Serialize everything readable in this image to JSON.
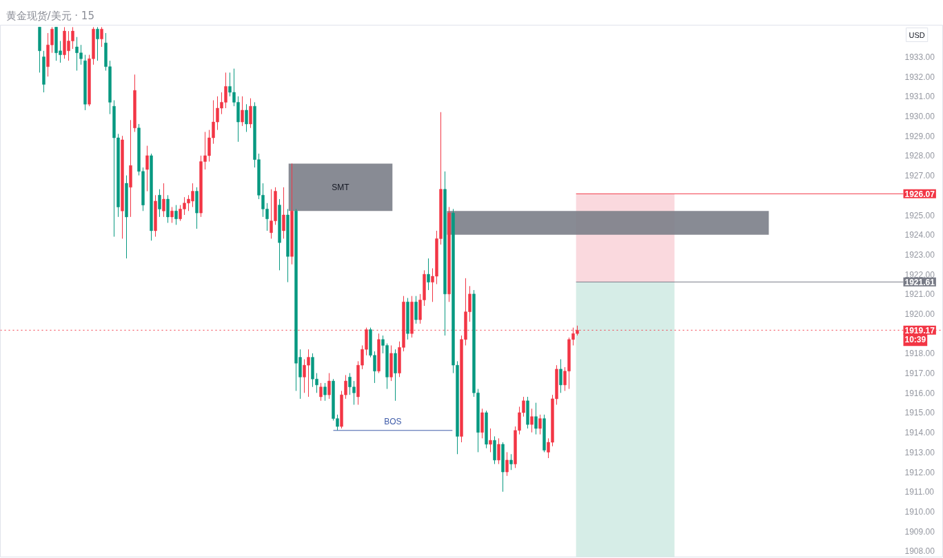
{
  "chart_data": {
    "type": "candlestick",
    "title": "黄金现货/美元 · 15",
    "ylabel": "USD",
    "tick_labels": "y",
    "categories": [
      null,
      null,
      null,
      null,
      null,
      null,
      null,
      null,
      null,
      null,
      null,
      null,
      null,
      null,
      null,
      null,
      null,
      null,
      null,
      null,
      null,
      null,
      null,
      null,
      null,
      null,
      null,
      null,
      null,
      null,
      null,
      null,
      null,
      null,
      null,
      null,
      null,
      null,
      null,
      null,
      null,
      null,
      null,
      null,
      null,
      null,
      null,
      null,
      null,
      null,
      null,
      null,
      null,
      null,
      null,
      null,
      null,
      null,
      null,
      null,
      null,
      null,
      null,
      null,
      null,
      null,
      null,
      null,
      null,
      null,
      null,
      null,
      null,
      null,
      null,
      null,
      null,
      null,
      null,
      null,
      null,
      null,
      null,
      null,
      null,
      null,
      null,
      null,
      null,
      null,
      null,
      null,
      null,
      null,
      null,
      null,
      null,
      null,
      null,
      null,
      null,
      null,
      null,
      null,
      null,
      null,
      null,
      null,
      null,
      null,
      null,
      null,
      null,
      null,
      null,
      null,
      null,
      null,
      null,
      null,
      null,
      null,
      null,
      null,
      null,
      null,
      null,
      null,
      null,
      null,
      null,
      null,
      null,
      null,
      null,
      null,
      null,
      null,
      null,
      null,
      null,
      null,
      null,
      null,
      null,
      null,
      null,
      null,
      null,
      null,
      null,
      null,
      null,
      null,
      null,
      null,
      null,
      null,
      null,
      null,
      null,
      null,
      null,
      null,
      null,
      null,
      null,
      null,
      null,
      null,
      null,
      null,
      null,
      null,
      null,
      null,
      null,
      null,
      null,
      null,
      null,
      null,
      null,
      null,
      null,
      null,
      null,
      null,
      null,
      null,
      null,
      null,
      null,
      null,
      null,
      null,
      null,
      null,
      null,
      null,
      null,
      null,
      null,
      null,
      null,
      null,
      null,
      null,
      null,
      null,
      null,
      null,
      null,
      null,
      null,
      null,
      null,
      null,
      null,
      null,
      null,
      null,
      null,
      null,
      null,
      null,
      null,
      null
    ],
    "ohlc": [
      null,
      null,
      null,
      null,
      null,
      null,
      null,
      null,
      null,
      [
        1934.5,
        1934.5,
        1932.2,
        1933.3
      ],
      [
        1933.0,
        1933.3,
        1931.2,
        1931.6
      ],
      [
        1932.5,
        1934.2,
        1932.0,
        1933.6
      ],
      [
        1933.6,
        1934.5,
        1933.2,
        1934.4
      ],
      [
        1934.5,
        1934.5,
        1932.8,
        1933.2
      ],
      [
        1933.3,
        1933.8,
        1932.7,
        1933.1
      ],
      [
        1933.1,
        1934.5,
        1932.9,
        1934.3
      ],
      [
        1933.3,
        1934.3,
        1932.8,
        1933.8
      ],
      [
        1933.8,
        1934.5,
        1933.4,
        1934.3
      ],
      [
        1933.5,
        1934.0,
        1932.3,
        1933.2
      ],
      [
        1933.2,
        1933.6,
        1932.6,
        1932.9
      ],
      [
        1932.8,
        1933.1,
        1930.3,
        1930.6
      ],
      [
        1930.6,
        1933.1,
        1930.5,
        1932.9
      ],
      [
        1932.9,
        1934.5,
        1932.6,
        1934.4
      ],
      [
        1934.4,
        1934.5,
        1932.8,
        1933.9
      ],
      [
        1933.9,
        1934.5,
        1933.5,
        1934.4
      ],
      [
        1933.7,
        1934.2,
        1932.3,
        1932.5
      ],
      [
        1932.5,
        1932.8,
        1930.1,
        1930.7
      ],
      [
        1930.5,
        1930.8,
        1923.9,
        1928.9
      ],
      [
        1928.9,
        1929.1,
        1924.9,
        1925.4
      ],
      [
        1925.2,
        1929.0,
        1923.8,
        1928.8
      ],
      [
        1926.6,
        1927.0,
        1922.8,
        1924.9
      ],
      [
        1926.4,
        1929.8,
        1924.9,
        1927.5
      ],
      [
        1929.4,
        1932.1,
        1929.2,
        1931.3
      ],
      [
        1929.4,
        1929.6,
        1927.0,
        1927.2
      ],
      [
        1927.2,
        1927.4,
        1925.2,
        1925.5
      ],
      [
        1927.3,
        1928.5,
        1926.2,
        1928.0
      ],
      [
        1928.0,
        1928.1,
        1923.7,
        1924.2
      ],
      [
        1924.2,
        1926.0,
        1923.9,
        1925.7
      ],
      [
        1926.0,
        1926.3,
        1924.9,
        1925.3
      ],
      [
        1925.2,
        1926.6,
        1924.9,
        1925.8
      ],
      [
        1925.8,
        1926.0,
        1924.6,
        1924.9
      ],
      [
        1924.9,
        1925.4,
        1924.6,
        1925.2
      ],
      [
        1925.2,
        1925.5,
        1924.5,
        1924.8
      ],
      [
        1924.8,
        1925.5,
        1924.7,
        1925.3
      ],
      [
        1925.3,
        1925.9,
        1925.0,
        1925.6
      ],
      [
        1925.6,
        1926.0,
        1925.2,
        1925.8
      ],
      [
        1925.7,
        1926.6,
        1925.4,
        1926.2
      ],
      [
        1926.2,
        1926.4,
        1924.3,
        1925.1
      ],
      [
        1925.1,
        1928.0,
        1924.9,
        1927.7
      ],
      [
        1927.7,
        1929.2,
        1927.3,
        1928.0
      ],
      [
        1928.0,
        1929.3,
        1927.7,
        1928.9
      ],
      [
        1928.9,
        1930.8,
        1928.6,
        1929.7
      ],
      [
        1929.7,
        1931.0,
        1929.3,
        1930.4
      ],
      [
        1930.4,
        1931.2,
        1930.1,
        1930.7
      ],
      [
        1930.7,
        1932.2,
        1930.4,
        1931.5
      ],
      [
        1931.5,
        1932.2,
        1931.0,
        1931.2
      ],
      [
        1931.2,
        1932.4,
        1930.5,
        1930.7
      ],
      [
        1930.7,
        1931.0,
        1928.7,
        1929.7
      ],
      [
        1929.7,
        1931.0,
        1929.5,
        1930.3
      ],
      [
        1930.3,
        1930.6,
        1929.2,
        1929.6
      ],
      [
        1929.6,
        1930.9,
        1929.4,
        1930.5
      ],
      [
        1930.5,
        1930.7,
        1927.4,
        1927.8
      ],
      [
        1927.8,
        1928.1,
        1925.8,
        1926.0
      ],
      [
        1926.0,
        1926.6,
        1924.9,
        1925.3
      ],
      [
        1925.3,
        1925.6,
        1924.2,
        1924.8
      ],
      [
        1924.1,
        1926.3,
        1923.8,
        1924.7
      ],
      [
        1924.7,
        1926.4,
        1924.5,
        1926.2
      ],
      [
        1925.5,
        1925.8,
        1922.2,
        1923.6
      ],
      [
        1924.2,
        1926.4,
        1923.8,
        1925.0
      ],
      [
        1925.0,
        1925.3,
        1921.6,
        1922.9
      ],
      [
        1922.9,
        1927.6,
        1922.5,
        1925.2
      ],
      [
        1925.2,
        1925.3,
        1916.1,
        1917.5
      ],
      [
        1917.8,
        1918.2,
        1915.7,
        1916.8
      ],
      [
        1916.8,
        1917.7,
        1916.0,
        1917.4
      ],
      [
        1917.4,
        1918.2,
        1915.8,
        1917.8
      ],
      [
        1917.8,
        1918.0,
        1916.3,
        1916.7
      ],
      [
        1916.7,
        1917.0,
        1916.0,
        1916.4
      ],
      [
        1915.8,
        1916.5,
        1915.6,
        1916.3
      ],
      [
        1916.3,
        1916.5,
        1915.6,
        1915.9
      ],
      [
        1915.9,
        1917.0,
        1915.7,
        1916.6
      ],
      [
        1916.6,
        1916.7,
        1914.6,
        1914.7
      ],
      [
        1914.7,
        1914.9,
        1914.1,
        1914.3
      ],
      [
        1914.3,
        1916.1,
        1914.2,
        1915.9
      ],
      [
        1915.9,
        1916.9,
        1915.7,
        1916.6
      ],
      [
        1916.8,
        1917.0,
        1915.9,
        1916.3
      ],
      [
        1916.3,
        1916.6,
        1915.4,
        1916.0
      ],
      [
        1915.8,
        1917.6,
        1915.4,
        1917.4
      ],
      [
        1917.4,
        1918.4,
        1917.2,
        1918.2
      ],
      [
        1918.2,
        1919.3,
        1917.9,
        1919.2
      ],
      [
        1919.2,
        1919.3,
        1917.8,
        1917.9
      ],
      [
        1917.9,
        1918.1,
        1916.5,
        1917.1
      ],
      [
        1917.1,
        1919.0,
        1917.0,
        1918.7
      ],
      [
        1918.7,
        1918.9,
        1918.0,
        1918.4
      ],
      [
        1918.4,
        1918.5,
        1916.2,
        1916.8
      ],
      [
        1916.8,
        1918.4,
        1916.6,
        1918.0
      ],
      [
        1918.0,
        1918.2,
        1915.6,
        1917.0
      ],
      [
        1917.0,
        1918.6,
        1916.8,
        1918.3
      ],
      [
        1918.3,
        1920.9,
        1918.1,
        1920.6
      ],
      [
        1920.6,
        1920.8,
        1918.7,
        1919.0
      ],
      [
        1919.0,
        1920.9,
        1918.8,
        1920.6
      ],
      [
        1920.6,
        1920.9,
        1919.5,
        1919.7
      ],
      [
        1919.7,
        1921.0,
        1919.5,
        1920.7
      ],
      [
        1920.7,
        1922.2,
        1920.4,
        1922.0
      ],
      [
        1922.0,
        1922.8,
        1921.2,
        1921.6
      ],
      [
        1921.6,
        1922.3,
        1920.6,
        1921.9
      ],
      [
        1921.9,
        1924.2,
        1921.5,
        1923.8
      ],
      [
        1923.8,
        1930.2,
        1923.5,
        1926.3
      ],
      [
        1926.3,
        1927.2,
        1918.9,
        1921.0
      ],
      [
        1921.0,
        1925.4,
        1920.6,
        1925.1
      ],
      [
        1925.1,
        1925.3,
        1917.0,
        1917.4
      ],
      [
        1917.4,
        1917.6,
        1912.9,
        1913.8
      ],
      [
        1913.8,
        1918.9,
        1913.5,
        1918.7
      ],
      [
        1918.7,
        1921.8,
        1918.4,
        1920.1
      ],
      [
        1920.1,
        1921.4,
        1919.6,
        1921.0
      ],
      [
        1921.0,
        1921.2,
        1915.8,
        1916.0
      ],
      [
        1916.0,
        1916.2,
        1913.0,
        1914.0
      ],
      [
        1914.0,
        1915.2,
        1913.7,
        1915.0
      ],
      [
        1915.0,
        1915.1,
        1913.2,
        1913.4
      ],
      [
        1913.4,
        1914.2,
        1913.0,
        1913.6
      ],
      [
        1913.6,
        1913.8,
        1912.4,
        1912.6
      ],
      [
        1912.6,
        1913.7,
        1912.4,
        1913.4
      ],
      [
        1913.4,
        1913.5,
        1911.0,
        1912.0
      ],
      [
        1912.0,
        1913.0,
        1911.8,
        1912.6
      ],
      [
        1912.6,
        1912.9,
        1912.1,
        1912.4
      ],
      [
        1912.4,
        1914.3,
        1912.2,
        1914.1
      ],
      [
        1914.1,
        1915.3,
        1913.9,
        1915.0
      ],
      [
        1915.0,
        1915.8,
        1914.8,
        1915.6
      ],
      [
        1915.6,
        1915.8,
        1914.2,
        1914.4
      ],
      [
        1914.4,
        1915.2,
        1914.0,
        1914.8
      ],
      [
        1914.8,
        1915.5,
        1913.9,
        1914.2
      ],
      [
        1914.2,
        1914.9,
        1913.9,
        1914.7
      ],
      [
        1914.7,
        1914.9,
        1913.0,
        1913.1
      ],
      [
        1913.0,
        1913.7,
        1912.7,
        1913.5
      ],
      [
        1913.5,
        1915.9,
        1913.3,
        1915.7
      ],
      [
        1915.7,
        1917.4,
        1915.4,
        1917.2
      ],
      [
        1917.2,
        1917.7,
        1916.0,
        1916.4
      ],
      [
        1916.4,
        1917.3,
        1916.1,
        1917.1
      ],
      [
        1917.1,
        1918.8,
        1916.2,
        1918.7
      ],
      [
        1918.7,
        1919.3,
        1918.4,
        1919.0
      ],
      [
        1919.0,
        1919.4,
        1918.9,
        1919.17
      ],
      null,
      null,
      null,
      null,
      null,
      null,
      null,
      null,
      null,
      null,
      null,
      null,
      null,
      null,
      null,
      null,
      null,
      null,
      null,
      null,
      null,
      null,
      null,
      null,
      null,
      null,
      null,
      null,
      null,
      null,
      null,
      null,
      null,
      null,
      null,
      null,
      null,
      null,
      null,
      null,
      null,
      null,
      null,
      null,
      null,
      null,
      null,
      null,
      null,
      null,
      null,
      null,
      null,
      null,
      null,
      null,
      null,
      null,
      null,
      null,
      null,
      null,
      null,
      null,
      null,
      null,
      null,
      null,
      null,
      null,
      null,
      null,
      null,
      null,
      null,
      null,
      null,
      null,
      null,
      null,
      null,
      null,
      null,
      null,
      null,
      null,
      null,
      null
    ],
    "colors": [
      null,
      null,
      null,
      null,
      null,
      null,
      null,
      null,
      null,
      "#089981",
      "#089981",
      "#f23645",
      "#f23645",
      "#089981",
      "#089981",
      "#f23645",
      "#f23645",
      "#f23645",
      "#089981",
      "#089981",
      "#089981",
      "#f23645",
      "#f23645",
      "#089981",
      "#f23645",
      "#089981",
      "#089981",
      "#089981",
      "#089981",
      "#f23645",
      "#089981",
      "#f23645",
      "#f23645",
      "#089981",
      "#089981",
      "#f23645",
      "#089981",
      "#f23645",
      "#089981",
      "#f23645",
      "#089981",
      "#f23645",
      "#089981",
      "#f23645",
      "#f23645",
      "#f23645",
      "#f23645",
      "#089981",
      "#f23645",
      "#f23645",
      "#f23645",
      "#f23645",
      "#f23645",
      "#f23645",
      "#f23645",
      "#089981",
      "#089981",
      "#089981",
      "#f23645",
      "#089981",
      "#f23645",
      "#089981",
      "#089981",
      "#089981",
      "#089981",
      "#f23645",
      "#f23645",
      "#089981",
      "#f23645",
      "#089981",
      "#f23645",
      "#089981",
      "#089981",
      "#f23645",
      "#f23645",
      "#089981",
      "#089981",
      "#f23645",
      "#089981",
      "#f23645",
      "#089981",
      "#089981",
      "#f23645",
      "#f23645",
      "#089981",
      "#089981",
      "#f23645",
      "#f23645",
      "#f23645",
      "#089981",
      "#089981",
      "#f23645",
      "#089981",
      "#089981",
      "#f23645",
      "#089981",
      "#f23645",
      "#f23645",
      "#089981",
      "#f23645",
      "#089981",
      "#f23645",
      "#f23645",
      "#089981",
      "#f23645",
      "#f23645",
      "#f23645",
      "#089981",
      "#f23645",
      "#089981",
      "#089981",
      "#f23645",
      "#f23645",
      "#f23645",
      "#089981",
      "#089981",
      "#f23645",
      "#089981",
      "#f23645",
      "#089981",
      "#f23645",
      "#089981",
      "#f23645",
      "#089981",
      "#f23645",
      "#f23645",
      "#f23645",
      "#089981",
      "#f23645",
      "#089981",
      "#f23645",
      "#089981",
      "#f23645",
      "#f23645",
      "#f23645",
      "#089981",
      "#f23645",
      "#f23645",
      "#f23645",
      "#f23645",
      null,
      null,
      null,
      null,
      null,
      null,
      null,
      null,
      null,
      null,
      null,
      null,
      null,
      null,
      null,
      null,
      null,
      null,
      null,
      null,
      null,
      null,
      null,
      null,
      null,
      null,
      null,
      null,
      null,
      null,
      null,
      null,
      null,
      null,
      null,
      null,
      null,
      null,
      null,
      null,
      null,
      null,
      null,
      null,
      null,
      null,
      null,
      null,
      null,
      null,
      null,
      null,
      null,
      null,
      null,
      null,
      null,
      null,
      null,
      null,
      null,
      null,
      null,
      null,
      null,
      null,
      null,
      null,
      null,
      null,
      null,
      null,
      null,
      null,
      null,
      null,
      null,
      null,
      null,
      null,
      null,
      null,
      null,
      null,
      null,
      null,
      null,
      null
    ],
    "ylim": [
      1907.7,
      1934.6
    ],
    "yticks": [
      {
        "value": 1908,
        "label": "1908.00"
      },
      {
        "value": 1909,
        "label": "1909.00"
      },
      {
        "value": 1910,
        "label": "1910.00"
      },
      {
        "value": 1911,
        "label": "1911.00"
      },
      {
        "value": 1912,
        "label": "1912.00"
      },
      {
        "value": 1913,
        "label": "1913.00"
      },
      {
        "value": 1914,
        "label": "1914.00"
      },
      {
        "value": 1915,
        "label": "1915.00"
      },
      {
        "value": 1916,
        "label": "1916.00"
      },
      {
        "value": 1917,
        "label": "1917.00"
      },
      {
        "value": 1918,
        "label": "1918.00"
      },
      {
        "value": 1920,
        "label": "1920.00"
      },
      {
        "value": 1921,
        "label": "1921.00"
      },
      {
        "value": 1922,
        "label": "1922.00"
      },
      {
        "value": 1923,
        "label": "1923.00"
      },
      {
        "value": 1924,
        "label": "1924.00"
      },
      {
        "value": 1925,
        "label": "1925.00"
      },
      {
        "value": 1927,
        "label": "1927.00"
      },
      {
        "value": 1928,
        "label": "1928.00"
      },
      {
        "value": 1929,
        "label": "1929.00"
      },
      {
        "value": 1930,
        "label": "1930.00"
      },
      {
        "value": 1931,
        "label": "1931.00"
      },
      {
        "value": 1932,
        "label": "1932.00"
      },
      {
        "value": 1933,
        "label": "1933.00"
      }
    ],
    "bands": [
      {
        "axis": "y",
        "from": 1921.61,
        "to": 1926.07,
        "color": "#f9d5da"
      },
      {
        "axis": "y",
        "from": 1907.7,
        "to": 1921.61,
        "color": "#d1ebe4"
      },
      {
        "axis": "y",
        "from": 1925.2,
        "to": 1927.6,
        "label": "SMT",
        "color": "#7b7e88"
      },
      {
        "axis": "y",
        "from": 1924.0,
        "to": 1925.2,
        "color": "#7b7e88"
      }
    ],
    "ref_lines": [
      {
        "axis": "y",
        "value": 1926.07,
        "label": "1926.07",
        "color": "#f23645"
      },
      {
        "axis": "y",
        "value": 1921.61,
        "label": "1921.61",
        "color": "#787b86"
      },
      {
        "axis": "y",
        "value": 1919.17,
        "label": "1919.17\n10:39",
        "color": "#f23645",
        "line_style": "dotted"
      },
      {
        "axis": "y",
        "value": 1914.1,
        "label": "BOS",
        "color": "#3d5aa8"
      }
    ]
  }
}
